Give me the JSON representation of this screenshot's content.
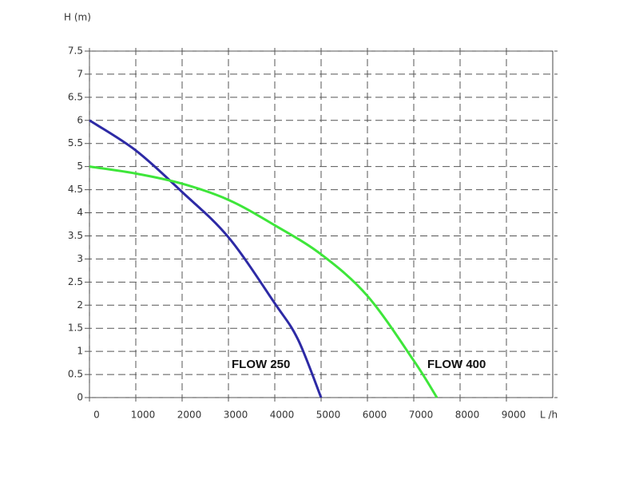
{
  "chart_data": {
    "type": "line",
    "y_label": "H (m)",
    "x_label": "L /h",
    "xlim": [
      0,
      10000
    ],
    "xticks": [
      0,
      1000,
      2000,
      3000,
      4000,
      5000,
      6000,
      7000,
      8000,
      9000
    ],
    "ylim": [
      0,
      7.5
    ],
    "yticks": [
      0,
      0.5,
      1,
      1.5,
      2,
      2.5,
      3,
      3.5,
      4,
      4.5,
      5,
      5.5,
      6,
      6.5,
      7,
      7.5
    ],
    "grid": true,
    "series": [
      {
        "name": "FLOW 250",
        "color": "#2d2aa5",
        "x": [
          0,
          1000,
          2000,
          3000,
          4000,
          4500,
          5000
        ],
        "values": [
          6,
          5.35,
          4.45,
          3.47,
          2.04,
          1.26,
          0
        ]
      },
      {
        "name": "FLOW 400",
        "color": "#3ee63a",
        "x": [
          0,
          1000,
          2000,
          3000,
          4000,
          5000,
          6000,
          7000,
          7500
        ],
        "values": [
          5,
          4.85,
          4.63,
          4.28,
          3.73,
          3.1,
          2.2,
          0.8,
          0
        ]
      }
    ]
  }
}
